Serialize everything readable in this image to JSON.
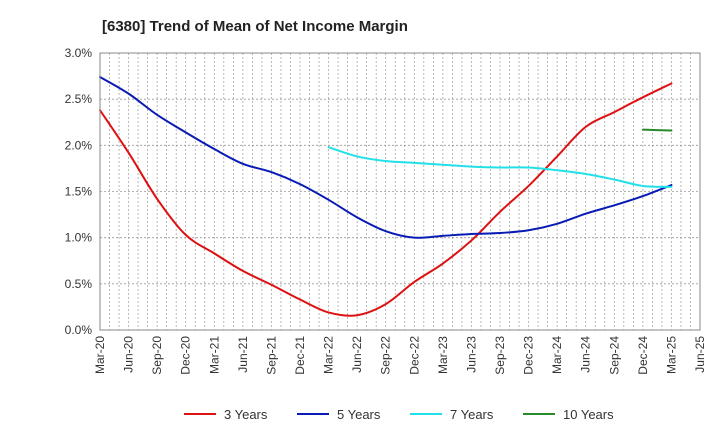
{
  "chart_data": {
    "type": "line",
    "title": "[6380]  Trend of Mean of Net Income Margin",
    "xlabel": "",
    "ylabel": "",
    "x_ticks": [
      "Mar-20",
      "Jun-20",
      "Sep-20",
      "Dec-20",
      "Mar-21",
      "Jun-21",
      "Sep-21",
      "Dec-21",
      "Mar-22",
      "Jun-22",
      "Sep-22",
      "Dec-22",
      "Mar-23",
      "Jun-23",
      "Sep-23",
      "Dec-23",
      "Mar-24",
      "Jun-24",
      "Sep-24",
      "Dec-24",
      "Mar-25",
      "Jun-25"
    ],
    "y_ticks": [
      "0.0%",
      "0.5%",
      "1.0%",
      "1.5%",
      "2.0%",
      "2.5%",
      "3.0%"
    ],
    "ylim": [
      0,
      3.0
    ],
    "grid": true,
    "legend_position": "bottom",
    "series": [
      {
        "name": "3 Years",
        "color": "#dd1111",
        "x": [
          "Mar-20",
          "Jun-20",
          "Sep-20",
          "Dec-20",
          "Mar-21",
          "Jun-21",
          "Sep-21",
          "Dec-21",
          "Mar-22",
          "Jun-22",
          "Sep-22",
          "Dec-22",
          "Mar-23",
          "Jun-23",
          "Sep-23",
          "Dec-23",
          "Mar-24",
          "Jun-24",
          "Sep-24",
          "Dec-24",
          "Mar-25"
        ],
        "values": [
          2.38,
          1.92,
          1.42,
          1.03,
          0.83,
          0.64,
          0.49,
          0.33,
          0.19,
          0.16,
          0.28,
          0.52,
          0.72,
          0.97,
          1.28,
          1.56,
          1.88,
          2.2,
          2.36,
          2.52,
          2.67
        ]
      },
      {
        "name": "5 Years",
        "color": "#0a1bb5",
        "x": [
          "Mar-20",
          "Jun-20",
          "Sep-20",
          "Dec-20",
          "Mar-21",
          "Jun-21",
          "Sep-21",
          "Dec-21",
          "Mar-22",
          "Jun-22",
          "Sep-22",
          "Dec-22",
          "Mar-23",
          "Jun-23",
          "Sep-23",
          "Dec-23",
          "Mar-24",
          "Jun-24",
          "Sep-24",
          "Dec-24",
          "Mar-25"
        ],
        "values": [
          2.74,
          2.56,
          2.33,
          2.14,
          1.96,
          1.8,
          1.71,
          1.58,
          1.41,
          1.22,
          1.07,
          1.0,
          1.02,
          1.04,
          1.05,
          1.08,
          1.15,
          1.26,
          1.35,
          1.45,
          1.57
        ]
      },
      {
        "name": "7 Years",
        "color": "#22e0e8",
        "x": [
          "Mar-22",
          "Jun-22",
          "Sep-22",
          "Dec-22",
          "Mar-23",
          "Jun-23",
          "Sep-23",
          "Dec-23",
          "Mar-24",
          "Jun-24",
          "Sep-24",
          "Dec-24",
          "Mar-25"
        ],
        "values": [
          1.98,
          1.88,
          1.83,
          1.81,
          1.79,
          1.77,
          1.76,
          1.76,
          1.73,
          1.69,
          1.63,
          1.56,
          1.55
        ]
      },
      {
        "name": "10 Years",
        "color": "#2a8a2a",
        "x": [
          "Dec-24",
          "Mar-25"
        ],
        "values": [
          2.17,
          2.16
        ]
      }
    ]
  }
}
